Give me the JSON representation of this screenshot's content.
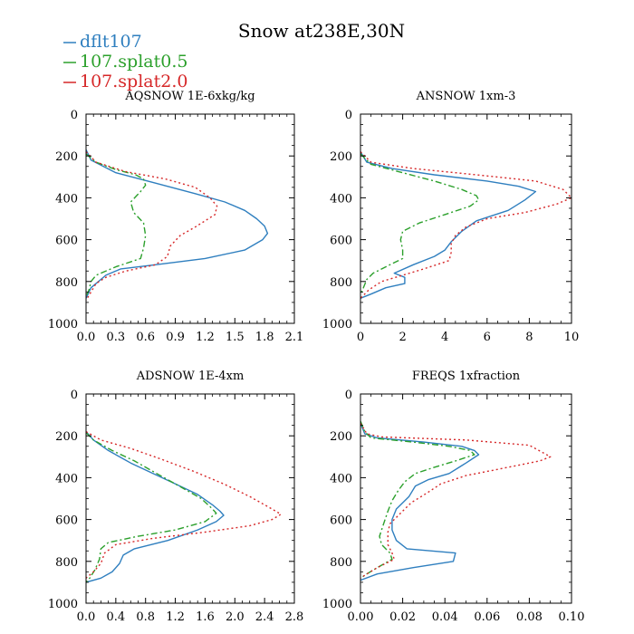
{
  "figure": {
    "title": "Snow at238E,30N",
    "colors": {
      "axes": "#000000",
      "background": "#ffffff"
    }
  },
  "legend": [
    {
      "name": "dflt107",
      "color": "#2f7fbf",
      "style": "solid"
    },
    {
      "name": "107.splat0.5",
      "color": "#2ca02c",
      "style": "dashdot"
    },
    {
      "name": "107.splat2.0",
      "color": "#d62728",
      "style": "dotted"
    }
  ],
  "chart_data": [
    {
      "type": "line",
      "title": "AQSNOW  1E-6xkg/kg",
      "xlabel": "",
      "ylabel": "",
      "xlim": [
        0,
        2.1
      ],
      "ylim": [
        1000,
        0
      ],
      "xticks": [
        "0.0",
        "0.3",
        "0.6",
        "0.9",
        "1.2",
        "1.5",
        "1.8",
        "2.1"
      ],
      "yticks": [
        "0",
        "200",
        "400",
        "600",
        "800",
        "1000"
      ],
      "series": [
        {
          "name": "dflt107",
          "points": [
            [
              0,
              170
            ],
            [
              0.05,
              220
            ],
            [
              0.3,
              280
            ],
            [
              0.7,
              330
            ],
            [
              1.1,
              380
            ],
            [
              1.4,
              420
            ],
            [
              1.6,
              460
            ],
            [
              1.72,
              500
            ],
            [
              1.8,
              535
            ],
            [
              1.83,
              570
            ],
            [
              1.78,
              600
            ],
            [
              1.6,
              650
            ],
            [
              1.2,
              690
            ],
            [
              0.7,
              720
            ],
            [
              0.35,
              740
            ],
            [
              0.2,
              770
            ],
            [
              0.15,
              790
            ],
            [
              0.05,
              830
            ],
            [
              0,
              880
            ]
          ]
        },
        {
          "name": "107.splat0.5",
          "points": [
            [
              0,
              190
            ],
            [
              0.1,
              230
            ],
            [
              0.3,
              265
            ],
            [
              0.5,
              290
            ],
            [
              0.58,
              310
            ],
            [
              0.6,
              340
            ],
            [
              0.55,
              370
            ],
            [
              0.45,
              420
            ],
            [
              0.48,
              470
            ],
            [
              0.58,
              520
            ],
            [
              0.6,
              580
            ],
            [
              0.58,
              640
            ],
            [
              0.55,
              690
            ],
            [
              0.3,
              730
            ],
            [
              0.1,
              770
            ],
            [
              0.05,
              800
            ],
            [
              0.03,
              840
            ],
            [
              0,
              870
            ]
          ]
        },
        {
          "name": "107.splat2.0",
          "points": [
            [
              0,
              180
            ],
            [
              0.1,
              230
            ],
            [
              0.4,
              275
            ],
            [
              0.8,
              310
            ],
            [
              1.1,
              350
            ],
            [
              1.25,
              400
            ],
            [
              1.32,
              440
            ],
            [
              1.3,
              480
            ],
            [
              1.1,
              540
            ],
            [
              0.95,
              580
            ],
            [
              0.85,
              630
            ],
            [
              0.82,
              680
            ],
            [
              0.7,
              720
            ],
            [
              0.4,
              750
            ],
            [
              0.2,
              780
            ],
            [
              0.1,
              810
            ],
            [
              0.05,
              850
            ],
            [
              0,
              890
            ]
          ]
        }
      ]
    },
    {
      "type": "line",
      "title": "ANSNOW  1xm-3",
      "xlabel": "",
      "ylabel": "",
      "xlim": [
        0,
        10
      ],
      "ylim": [
        1000,
        0
      ],
      "xticks": [
        "0",
        "2",
        "4",
        "6",
        "8",
        "10"
      ],
      "yticks": [
        "0",
        "200",
        "400",
        "600",
        "800",
        "1000"
      ],
      "series": [
        {
          "name": "dflt107",
          "points": [
            [
              0,
              180
            ],
            [
              0.3,
              230
            ],
            [
              1.5,
              260
            ],
            [
              3.5,
              290
            ],
            [
              6,
              320
            ],
            [
              7.5,
              345
            ],
            [
              8.3,
              370
            ],
            [
              7.8,
              410
            ],
            [
              7,
              460
            ],
            [
              5.5,
              510
            ],
            [
              4.8,
              560
            ],
            [
              4.3,
              610
            ],
            [
              4,
              650
            ],
            [
              3.5,
              680
            ],
            [
              2.5,
              720
            ],
            [
              1.6,
              760
            ],
            [
              2.1,
              780
            ],
            [
              2.1,
              810
            ],
            [
              1.2,
              830
            ],
            [
              0.5,
              860
            ],
            [
              0,
              880
            ]
          ]
        },
        {
          "name": "107.splat0.5",
          "points": [
            [
              0,
              190
            ],
            [
              0.5,
              240
            ],
            [
              2,
              280
            ],
            [
              3.5,
              320
            ],
            [
              4.8,
              360
            ],
            [
              5.5,
              390
            ],
            [
              5.6,
              410
            ],
            [
              5.2,
              440
            ],
            [
              4,
              480
            ],
            [
              2.8,
              520
            ],
            [
              2,
              560
            ],
            [
              1.9,
              600
            ],
            [
              2,
              650
            ],
            [
              2,
              690
            ],
            [
              1.4,
              720
            ],
            [
              0.6,
              760
            ],
            [
              0.3,
              790
            ],
            [
              0.1,
              840
            ],
            [
              0,
              860
            ]
          ]
        },
        {
          "name": "107.splat2.0",
          "points": [
            [
              0,
              180
            ],
            [
              0.5,
              230
            ],
            [
              2.5,
              260
            ],
            [
              5.5,
              290
            ],
            [
              8.3,
              320
            ],
            [
              9.6,
              360
            ],
            [
              10,
              400
            ],
            [
              9.3,
              430
            ],
            [
              7.8,
              470
            ],
            [
              6,
              500
            ],
            [
              5,
              540
            ],
            [
              4.5,
              580
            ],
            [
              4.3,
              620
            ],
            [
              4.3,
              660
            ],
            [
              4.2,
              700
            ],
            [
              3,
              740
            ],
            [
              2,
              770
            ],
            [
              1,
              800
            ],
            [
              0.4,
              840
            ],
            [
              0,
              880
            ]
          ]
        }
      ]
    },
    {
      "type": "line",
      "title": "ADSNOW  1E-4xm",
      "xlabel": "",
      "ylabel": "",
      "xlim": [
        0,
        2.8
      ],
      "ylim": [
        1000,
        0
      ],
      "xticks": [
        "0.0",
        "0.4",
        "0.8",
        "1.2",
        "1.6",
        "2.0",
        "2.4",
        "2.8"
      ],
      "yticks": [
        "0",
        "200",
        "400",
        "600",
        "800",
        "1000"
      ],
      "series": [
        {
          "name": "dflt107",
          "points": [
            [
              0,
              180
            ],
            [
              0.1,
              220
            ],
            [
              0.3,
              270
            ],
            [
              0.6,
              330
            ],
            [
              0.9,
              380
            ],
            [
              1.2,
              430
            ],
            [
              1.5,
              480
            ],
            [
              1.7,
              530
            ],
            [
              1.8,
              560
            ],
            [
              1.85,
              580
            ],
            [
              1.75,
              610
            ],
            [
              1.5,
              650
            ],
            [
              1.1,
              700
            ],
            [
              0.65,
              740
            ],
            [
              0.5,
              770
            ],
            [
              0.45,
              810
            ],
            [
              0.35,
              850
            ],
            [
              0.2,
              880
            ],
            [
              0,
              900
            ]
          ]
        },
        {
          "name": "107.splat0.5",
          "points": [
            [
              0,
              185
            ],
            [
              0.1,
              220
            ],
            [
              0.35,
              270
            ],
            [
              0.65,
              320
            ],
            [
              0.95,
              380
            ],
            [
              1.25,
              440
            ],
            [
              1.55,
              500
            ],
            [
              1.7,
              550
            ],
            [
              1.75,
              570
            ],
            [
              1.6,
              610
            ],
            [
              1.2,
              650
            ],
            [
              0.7,
              680
            ],
            [
              0.3,
              710
            ],
            [
              0.2,
              740
            ],
            [
              0.18,
              790
            ],
            [
              0.12,
              840
            ],
            [
              0.05,
              880
            ],
            [
              0,
              900
            ]
          ]
        },
        {
          "name": "107.splat2.0",
          "points": [
            [
              0,
              180
            ],
            [
              0.2,
              220
            ],
            [
              0.6,
              260
            ],
            [
              1,
              310
            ],
            [
              1.45,
              370
            ],
            [
              1.85,
              430
            ],
            [
              2.2,
              490
            ],
            [
              2.45,
              540
            ],
            [
              2.62,
              575
            ],
            [
              2.5,
              600
            ],
            [
              2.2,
              630
            ],
            [
              1.6,
              660
            ],
            [
              0.9,
              690
            ],
            [
              0.4,
              720
            ],
            [
              0.25,
              760
            ],
            [
              0.2,
              810
            ],
            [
              0.1,
              850
            ],
            [
              0,
              880
            ]
          ]
        }
      ]
    },
    {
      "type": "line",
      "title": "FREQS  1xfraction",
      "xlabel": "",
      "ylabel": "",
      "xlim": [
        0,
        0.1
      ],
      "ylim": [
        1000,
        0
      ],
      "xticks": [
        "0.00",
        "0.02",
        "0.04",
        "0.06",
        "0.08",
        "0.10"
      ],
      "yticks": [
        "0",
        "200",
        "400",
        "600",
        "800",
        "1000"
      ],
      "series": [
        {
          "name": "dflt107",
          "points": [
            [
              0,
              140
            ],
            [
              0.002,
              190
            ],
            [
              0.008,
              210
            ],
            [
              0.03,
              230
            ],
            [
              0.048,
              250
            ],
            [
              0.054,
              270
            ],
            [
              0.056,
              290
            ],
            [
              0.05,
              330
            ],
            [
              0.042,
              380
            ],
            [
              0.032,
              410
            ],
            [
              0.026,
              440
            ],
            [
              0.023,
              490
            ],
            [
              0.017,
              550
            ],
            [
              0.015,
              600
            ],
            [
              0.015,
              650
            ],
            [
              0.017,
              700
            ],
            [
              0.022,
              740
            ],
            [
              0.045,
              760
            ],
            [
              0.044,
              800
            ],
            [
              0.025,
              830
            ],
            [
              0.008,
              860
            ],
            [
              0,
              890
            ]
          ]
        },
        {
          "name": "107.splat0.5",
          "points": [
            [
              0,
              130
            ],
            [
              0.002,
              180
            ],
            [
              0.005,
              210
            ],
            [
              0.025,
              230
            ],
            [
              0.042,
              250
            ],
            [
              0.052,
              270
            ],
            [
              0.054,
              290
            ],
            [
              0.045,
              320
            ],
            [
              0.035,
              350
            ],
            [
              0.026,
              380
            ],
            [
              0.021,
              420
            ],
            [
              0.018,
              460
            ],
            [
              0.015,
              510
            ],
            [
              0.013,
              560
            ],
            [
              0.011,
              620
            ],
            [
              0.009,
              680
            ],
            [
              0.01,
              720
            ],
            [
              0.014,
              760
            ],
            [
              0.015,
              790
            ],
            [
              0.008,
              830
            ],
            [
              0.003,
              860
            ],
            [
              0,
              880
            ]
          ]
        },
        {
          "name": "107.splat2.0",
          "points": [
            [
              0,
              140
            ],
            [
              0.003,
              190
            ],
            [
              0.01,
              205
            ],
            [
              0.05,
              220
            ],
            [
              0.08,
              245
            ],
            [
              0.09,
              300
            ],
            [
              0.085,
              320
            ],
            [
              0.07,
              350
            ],
            [
              0.05,
              390
            ],
            [
              0.038,
              430
            ],
            [
              0.032,
              470
            ],
            [
              0.024,
              520
            ],
            [
              0.018,
              580
            ],
            [
              0.014,
              620
            ],
            [
              0.013,
              660
            ],
            [
              0.013,
              720
            ],
            [
              0.015,
              760
            ],
            [
              0.016,
              790
            ],
            [
              0.008,
              830
            ],
            [
              0.003,
              860
            ],
            [
              0,
              880
            ]
          ]
        }
      ]
    }
  ]
}
